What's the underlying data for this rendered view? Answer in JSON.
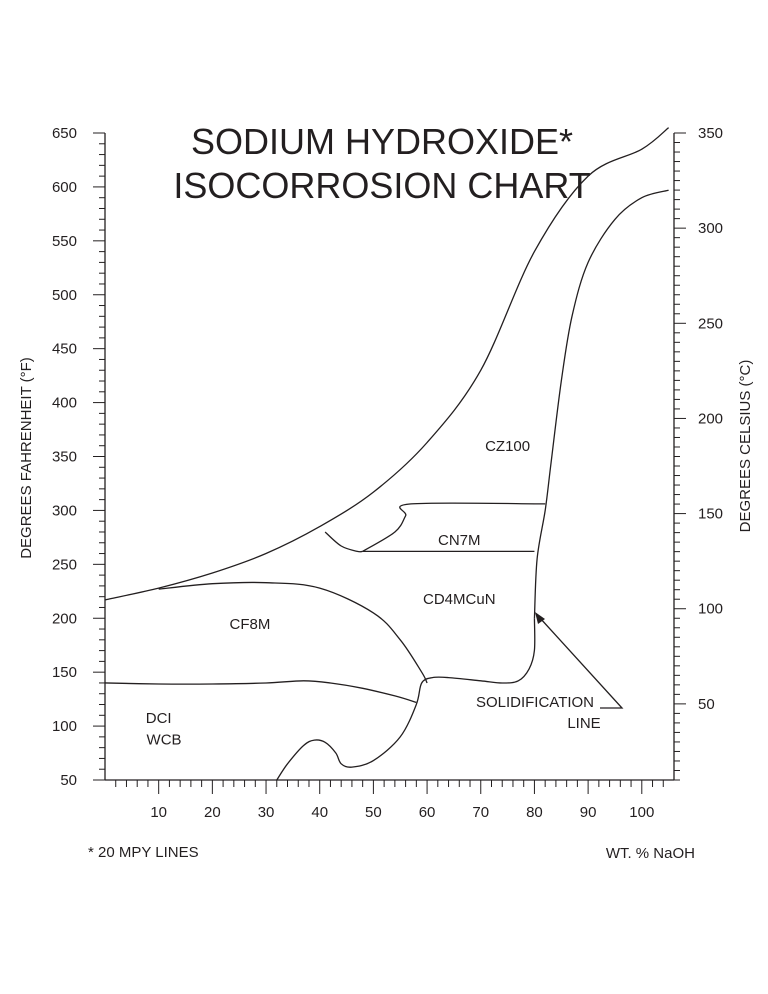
{
  "chart_data": {
    "type": "line",
    "title_line1": "SODIUM HYDROXIDE*",
    "title_line2": "ISOCORROSION CHART",
    "xlabel": "WT. % NaOH",
    "ylabel": "DEGREES FAHRENHEIT (°F)",
    "ylabel_right": "DEGREES CELSIUS (°C)",
    "footnote": "* 20 MPY LINES",
    "xlim": [
      0,
      106
    ],
    "ylim": [
      50,
      650
    ],
    "ylim_celsius": [
      10,
      350
    ],
    "x_ticks": [
      "10",
      "20",
      "30",
      "40",
      "50",
      "60",
      "70",
      "80",
      "90",
      "100"
    ],
    "y_ticks": [
      "50",
      "100",
      "150",
      "200",
      "250",
      "300",
      "350",
      "400",
      "450",
      "500",
      "550",
      "600",
      "650"
    ],
    "y_ticks_celsius": [
      "50",
      "100",
      "150",
      "200",
      "250",
      "300",
      "350"
    ],
    "grid": false,
    "regions": [
      {
        "label": "CZ100",
        "x": 75,
        "y": 355
      },
      {
        "label": "CN7M",
        "x": 66,
        "y": 268
      },
      {
        "label": "CD4MCuN",
        "x": 66,
        "y": 213
      },
      {
        "label": "CF8M",
        "x": 27,
        "y": 190
      },
      {
        "label": "DCI",
        "x": 10,
        "y": 103
      },
      {
        "label": "WCB",
        "x": 11,
        "y": 83
      }
    ],
    "annotation": {
      "line1": "SOLIDIFICATION",
      "line2": "LINE",
      "text_x": 70,
      "text_y": 121,
      "arrow_from": [
        96,
        116
      ],
      "arrow_to": [
        80.5,
        210
      ]
    },
    "series": [
      {
        "x": [
          0,
          10,
          20,
          30,
          40,
          50,
          60,
          70,
          80,
          90,
          100,
          105
        ],
        "y": [
          217,
          228,
          242,
          260,
          285,
          317,
          363,
          430,
          540,
          610,
          635,
          655
        ]
      },
      {
        "x": [
          41,
          44,
          47,
          48
        ],
        "y": [
          280,
          267,
          262,
          262
        ]
      },
      {
        "x": [
          48,
          80
        ],
        "y": [
          262,
          262
        ]
      },
      {
        "x": [
          48,
          54,
          56,
          57,
          82
        ],
        "y": [
          262,
          280,
          295,
          306,
          306
        ]
      },
      {
        "x": [
          80,
          80.5,
          82,
          83,
          85,
          87,
          90,
          95,
          100,
          105
        ],
        "y": [
          200,
          255,
          300,
          340,
          420,
          480,
          530,
          570,
          590,
          597
        ]
      },
      {
        "x": [
          80,
          80,
          79,
          77,
          74,
          70,
          64,
          61,
          59,
          58,
          55,
          50,
          46,
          44,
          43,
          41,
          39,
          37,
          34,
          32
        ],
        "y": [
          200,
          170,
          153,
          142,
          140,
          142,
          145,
          145,
          140,
          120,
          90,
          68,
          62,
          65,
          75,
          85,
          87,
          82,
          65,
          50
        ]
      },
      {
        "x": [
          10,
          20,
          30,
          40,
          50,
          55,
          59,
          60
        ],
        "y": [
          227,
          232,
          233,
          228,
          205,
          180,
          150,
          140
        ]
      },
      {
        "x": [
          0,
          10,
          20,
          30,
          37,
          42,
          48,
          54,
          58
        ],
        "y": [
          140,
          139,
          139,
          140,
          142,
          140,
          135,
          128,
          122
        ]
      }
    ]
  }
}
